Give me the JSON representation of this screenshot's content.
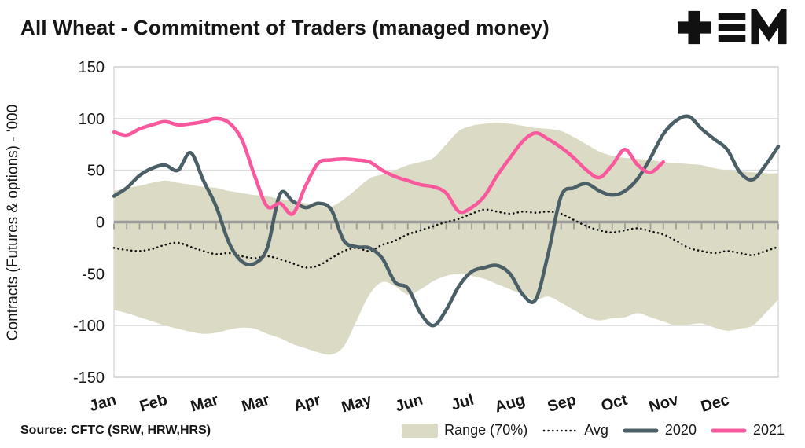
{
  "header": {
    "title": "All Wheat - Commitment of Traders (managed money)"
  },
  "logo": {
    "color": "#111111",
    "glyphs": [
      "plus",
      "triple-bars",
      "M"
    ]
  },
  "footer": {
    "source": "Source: CFTC (SRW, HRW,HRS)"
  },
  "legend": [
    {
      "label": "Range (70%)",
      "type": "band",
      "color": "#dbdac5"
    },
    {
      "label": "Avg",
      "type": "dotted",
      "color": "#111111"
    },
    {
      "label": "2020",
      "type": "line",
      "color": "#4b5f66"
    },
    {
      "label": "2021",
      "type": "line",
      "color": "#f9589c"
    }
  ],
  "chart_data": {
    "type": "line",
    "title": "All Wheat - Commitment of Traders (managed money)",
    "ylabel": "Contracts (Futures & options) - '000",
    "xlabel": "",
    "ylim": [
      -150,
      150
    ],
    "yticks": [
      150,
      100,
      50,
      0,
      -50,
      -100,
      -150
    ],
    "grid": "horizontal",
    "legend_position": "bottom-right",
    "zero_line_color": "#9b9b9b",
    "x_unit": "week_of_year",
    "x_weeks_total": 52,
    "xtick_labels": [
      "Jan",
      "Feb",
      "Mar",
      "Mar",
      "Apr",
      "May",
      "Jun",
      "Jul",
      "Aug",
      "Sep",
      "Oct",
      "Nov",
      "Dec"
    ],
    "xtick_weeks": [
      0,
      4,
      8,
      12,
      16,
      20,
      24,
      28,
      32,
      36,
      40,
      44,
      48
    ],
    "band": {
      "name": "Range (70%)",
      "color": "#dbdac5",
      "upper": [
        30,
        33,
        35,
        38,
        40,
        38,
        36,
        34,
        33,
        30,
        28,
        26,
        25,
        22,
        20,
        18,
        16,
        15,
        22,
        32,
        42,
        46,
        50,
        55,
        58,
        62,
        75,
        88,
        93,
        95,
        96,
        95,
        93,
        91,
        90,
        88,
        82,
        75,
        68,
        64,
        62,
        61,
        60,
        58,
        57,
        56,
        55,
        52,
        50,
        49,
        48,
        47,
        47
      ],
      "lower": [
        -85,
        -88,
        -92,
        -96,
        -100,
        -103,
        -106,
        -108,
        -107,
        -104,
        -102,
        -103,
        -108,
        -112,
        -118,
        -122,
        -126,
        -128,
        -120,
        -95,
        -70,
        -58,
        -62,
        -70,
        -65,
        -57,
        -52,
        -50,
        -52,
        -55,
        -60,
        -65,
        -70,
        -75,
        -72,
        -78,
        -85,
        -92,
        -95,
        -93,
        -92,
        -88,
        -92,
        -96,
        -100,
        -99,
        -98,
        -102,
        -105,
        -103,
        -100,
        -88,
        -75
      ]
    },
    "series": [
      {
        "name": "Avg",
        "style": "dotted",
        "color": "#111111",
        "width": 2.6,
        "values": [
          -25,
          -27,
          -28,
          -26,
          -22,
          -20,
          -24,
          -28,
          -31,
          -30,
          -33,
          -35,
          -33,
          -36,
          -40,
          -44,
          -42,
          -35,
          -28,
          -25,
          -28,
          -22,
          -18,
          -12,
          -8,
          -4,
          0,
          3,
          8,
          12,
          10,
          8,
          10,
          9,
          10,
          8,
          2,
          -4,
          -8,
          -10,
          -8,
          -6,
          -9,
          -12,
          -18,
          -25,
          -28,
          -30,
          -28,
          -30,
          -32,
          -28,
          -24
        ]
      },
      {
        "name": "2020",
        "style": "solid",
        "color": "#4b5f66",
        "width": 4.5,
        "values": [
          25,
          33,
          45,
          52,
          55,
          50,
          67,
          40,
          15,
          -20,
          -38,
          -40,
          -25,
          27,
          20,
          14,
          18,
          12,
          -18,
          -24,
          -25,
          -35,
          -58,
          -64,
          -88,
          -100,
          -85,
          -62,
          -48,
          -44,
          -42,
          -50,
          -70,
          -75,
          -30,
          25,
          33,
          37,
          30,
          26,
          30,
          42,
          62,
          85,
          98,
          102,
          90,
          80,
          70,
          48,
          41,
          55,
          73
        ]
      },
      {
        "name": "2021",
        "style": "solid",
        "color": "#f9589c",
        "width": 4.5,
        "values": [
          87,
          84,
          90,
          94,
          97,
          94,
          95,
          97,
          100,
          96,
          80,
          45,
          15,
          18,
          8,
          35,
          57,
          60,
          61,
          60,
          58,
          50,
          44,
          40,
          36,
          34,
          28,
          10,
          14,
          25,
          45,
          62,
          78,
          86,
          80,
          72,
          62,
          50,
          43,
          55,
          70,
          55,
          48,
          58
        ]
      }
    ]
  }
}
